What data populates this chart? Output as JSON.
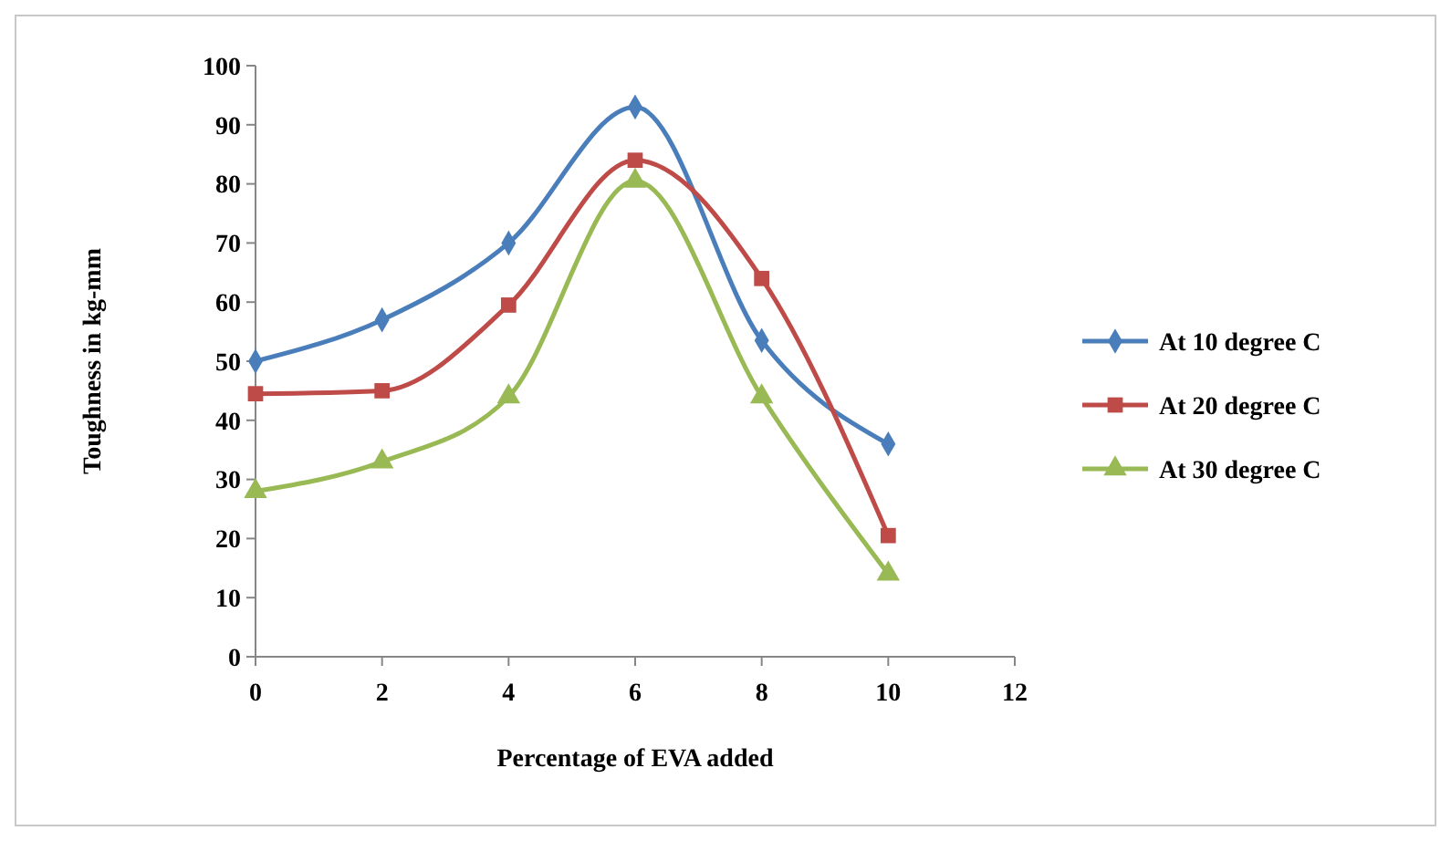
{
  "chart_data": {
    "type": "line",
    "xlabel": "Percentage of EVA added",
    "ylabel": "Toughness in kg-mm",
    "x": [
      0,
      2,
      4,
      6,
      8,
      10
    ],
    "xlim": [
      0,
      12
    ],
    "xticks": [
      0,
      2,
      4,
      6,
      8,
      10,
      12
    ],
    "ylim": [
      0,
      100
    ],
    "yticks": [
      0,
      10,
      20,
      30,
      40,
      50,
      60,
      70,
      80,
      90,
      100
    ],
    "grid": false,
    "legend": "right",
    "line_style": "solid",
    "series": [
      {
        "name": "At 10 degree C",
        "color": "#4a7ebb",
        "marker": "diamond",
        "values": [
          50,
          57,
          70,
          93,
          53.5,
          36
        ]
      },
      {
        "name": "At 20 degree C",
        "color": "#be4b48",
        "marker": "square",
        "values": [
          44.5,
          45,
          59.5,
          84,
          64,
          20.5
        ]
      },
      {
        "name": "At 30 degree C",
        "color": "#98b954",
        "marker": "triangle",
        "values": [
          28,
          33,
          44,
          80.5,
          44,
          14
        ]
      }
    ]
  }
}
